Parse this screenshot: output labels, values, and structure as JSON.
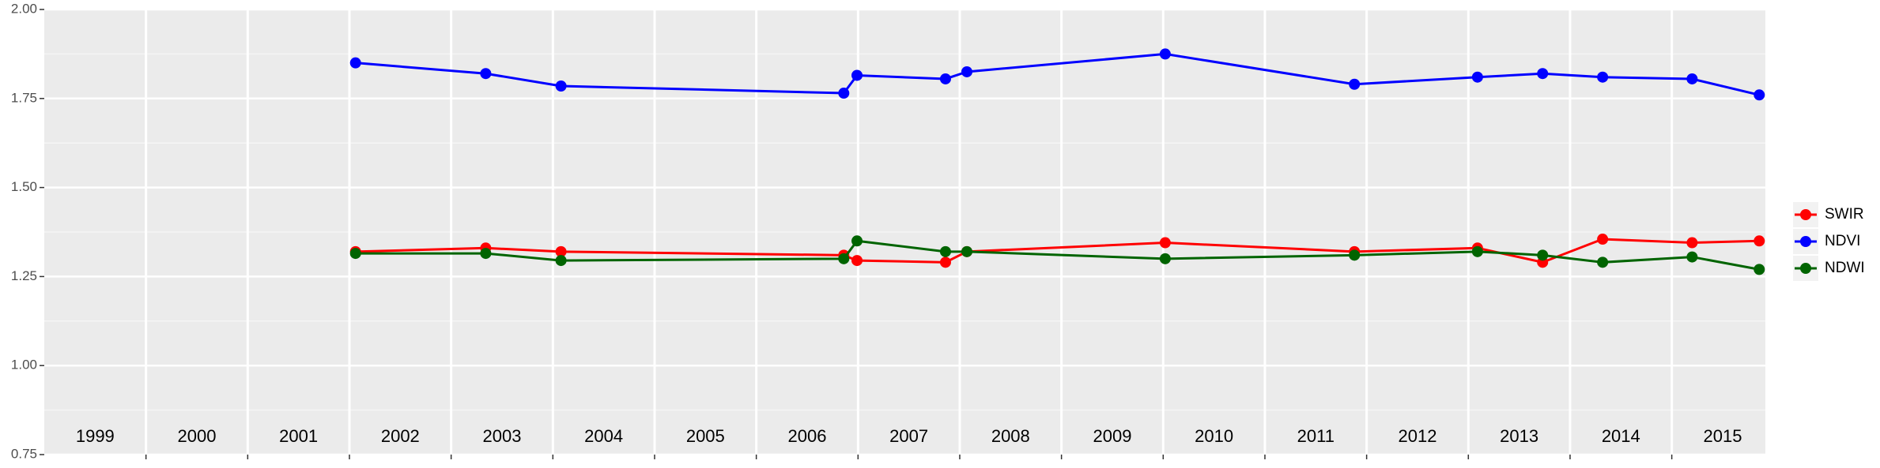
{
  "chart_data": {
    "type": "line",
    "x": [
      2002.06,
      2003.34,
      2004.08,
      2006.86,
      2006.99,
      2007.86,
      2008.07,
      2010.02,
      2011.88,
      2013.09,
      2013.73,
      2014.32,
      2015.2,
      2015.86
    ],
    "series": [
      {
        "name": "SWIR",
        "color": "#ff0000",
        "values": [
          1.32,
          1.33,
          1.32,
          1.31,
          1.295,
          1.29,
          1.32,
          1.345,
          1.32,
          1.33,
          1.29,
          1.355,
          1.345,
          1.35
        ]
      },
      {
        "name": "NDVI",
        "color": "#0000ff",
        "values": [
          1.85,
          1.82,
          1.785,
          1.765,
          1.815,
          1.805,
          1.825,
          1.875,
          1.79,
          1.81,
          1.82,
          1.81,
          1.805,
          1.76
        ]
      },
      {
        "name": "NDWI",
        "color": "#006400",
        "values": [
          1.315,
          1.315,
          1.295,
          1.3,
          1.35,
          1.32,
          1.32,
          1.3,
          1.31,
          1.32,
          1.31,
          1.29,
          1.305,
          1.27
        ]
      }
    ],
    "xlim": [
      1999,
      2015.92
    ],
    "xticks": [
      2000,
      2001,
      2002,
      2003,
      2004,
      2005,
      2006,
      2007,
      2008,
      2009,
      2010,
      2011,
      2012,
      2013,
      2014,
      2015
    ],
    "year_labels": [
      "1999",
      "2000",
      "2001",
      "2002",
      "2003",
      "2004",
      "2005",
      "2006",
      "2007",
      "2008",
      "2009",
      "2010",
      "2011",
      "2012",
      "2013",
      "2014",
      "2015"
    ],
    "ylim": [
      0.75,
      2.0
    ],
    "yticks": [
      0.75,
      {
        "value": 1.0,
        "label": "1.00"
      },
      1.25,
      {
        "value": 1.5,
        "label": "1.50"
      },
      1.75,
      {
        "value": 2.0,
        "label": "2.00"
      }
    ],
    "grid": true,
    "legend": "right"
  }
}
